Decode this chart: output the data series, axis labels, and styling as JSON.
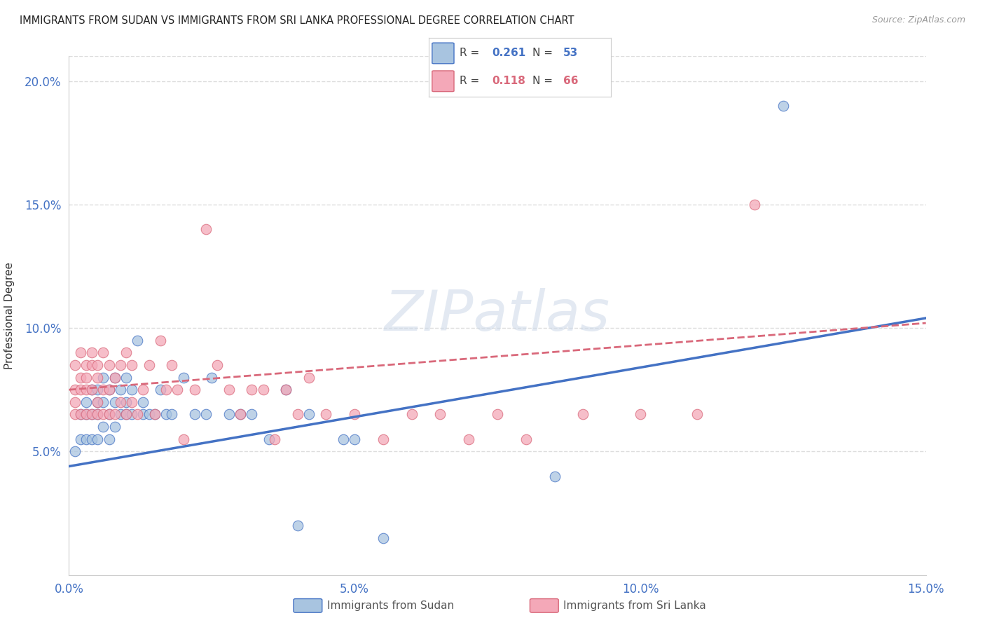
{
  "title": "IMMIGRANTS FROM SUDAN VS IMMIGRANTS FROM SRI LANKA PROFESSIONAL DEGREE CORRELATION CHART",
  "source": "Source: ZipAtlas.com",
  "ylabel": "Professional Degree",
  "xlim": [
    0.0,
    0.15
  ],
  "ylim": [
    0.0,
    0.21
  ],
  "xticks": [
    0.0,
    0.05,
    0.1,
    0.15
  ],
  "xtick_labels": [
    "0.0%",
    "5.0%",
    "10.0%",
    "15.0%"
  ],
  "yticks": [
    0.05,
    0.1,
    0.15,
    0.2
  ],
  "ytick_labels": [
    "5.0%",
    "10.0%",
    "15.0%",
    "20.0%"
  ],
  "sudan_R": "0.261",
  "sudan_N": "53",
  "srilanka_R": "0.118",
  "srilanka_N": "66",
  "sudan_color": "#a8c4e0",
  "srilanka_color": "#f4a8b8",
  "sudan_line_color": "#4472c4",
  "srilanka_line_color": "#d9687a",
  "sudan_x": [
    0.001,
    0.002,
    0.002,
    0.003,
    0.003,
    0.003,
    0.004,
    0.004,
    0.004,
    0.005,
    0.005,
    0.005,
    0.005,
    0.006,
    0.006,
    0.006,
    0.007,
    0.007,
    0.007,
    0.008,
    0.008,
    0.008,
    0.009,
    0.009,
    0.01,
    0.01,
    0.01,
    0.011,
    0.011,
    0.012,
    0.013,
    0.013,
    0.014,
    0.015,
    0.016,
    0.017,
    0.018,
    0.02,
    0.022,
    0.024,
    0.025,
    0.028,
    0.03,
    0.032,
    0.035,
    0.038,
    0.04,
    0.042,
    0.048,
    0.05,
    0.055,
    0.085,
    0.125
  ],
  "sudan_y": [
    0.05,
    0.065,
    0.055,
    0.07,
    0.065,
    0.055,
    0.075,
    0.065,
    0.055,
    0.075,
    0.07,
    0.065,
    0.055,
    0.08,
    0.07,
    0.06,
    0.075,
    0.065,
    0.055,
    0.08,
    0.07,
    0.06,
    0.075,
    0.065,
    0.08,
    0.07,
    0.065,
    0.075,
    0.065,
    0.095,
    0.07,
    0.065,
    0.065,
    0.065,
    0.075,
    0.065,
    0.065,
    0.08,
    0.065,
    0.065,
    0.08,
    0.065,
    0.065,
    0.065,
    0.055,
    0.075,
    0.02,
    0.065,
    0.055,
    0.055,
    0.015,
    0.04,
    0.19
  ],
  "srilanka_x": [
    0.001,
    0.001,
    0.001,
    0.001,
    0.002,
    0.002,
    0.002,
    0.002,
    0.003,
    0.003,
    0.003,
    0.003,
    0.004,
    0.004,
    0.004,
    0.004,
    0.005,
    0.005,
    0.005,
    0.005,
    0.006,
    0.006,
    0.006,
    0.007,
    0.007,
    0.007,
    0.008,
    0.008,
    0.009,
    0.009,
    0.01,
    0.01,
    0.011,
    0.011,
    0.012,
    0.013,
    0.014,
    0.015,
    0.016,
    0.017,
    0.018,
    0.019,
    0.02,
    0.022,
    0.024,
    0.026,
    0.028,
    0.03,
    0.032,
    0.034,
    0.036,
    0.038,
    0.04,
    0.042,
    0.045,
    0.05,
    0.055,
    0.06,
    0.065,
    0.07,
    0.075,
    0.08,
    0.09,
    0.1,
    0.11,
    0.12
  ],
  "srilanka_y": [
    0.085,
    0.075,
    0.07,
    0.065,
    0.09,
    0.08,
    0.075,
    0.065,
    0.085,
    0.08,
    0.075,
    0.065,
    0.09,
    0.085,
    0.075,
    0.065,
    0.085,
    0.08,
    0.07,
    0.065,
    0.09,
    0.075,
    0.065,
    0.085,
    0.075,
    0.065,
    0.08,
    0.065,
    0.085,
    0.07,
    0.09,
    0.065,
    0.085,
    0.07,
    0.065,
    0.075,
    0.085,
    0.065,
    0.095,
    0.075,
    0.085,
    0.075,
    0.055,
    0.075,
    0.14,
    0.085,
    0.075,
    0.065,
    0.075,
    0.075,
    0.055,
    0.075,
    0.065,
    0.08,
    0.065,
    0.065,
    0.055,
    0.065,
    0.065,
    0.055,
    0.065,
    0.055,
    0.065,
    0.065,
    0.065,
    0.15
  ],
  "watermark": "ZIPatlas",
  "background_color": "#ffffff",
  "grid_color": "#dddddd",
  "sudan_line_intercept": 0.044,
  "sudan_line_slope": 0.4,
  "srilanka_line_intercept": 0.075,
  "srilanka_line_slope": 0.18
}
